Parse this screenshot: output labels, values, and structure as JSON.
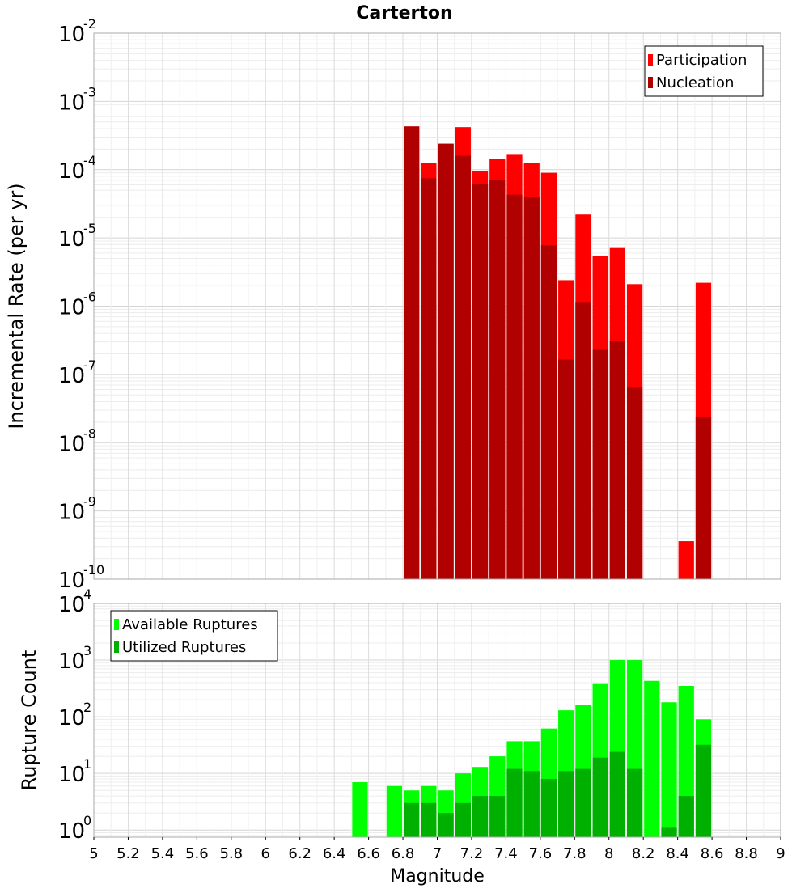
{
  "chart_data": [
    {
      "type": "bar",
      "title": "Carterton",
      "ylabel": "Incremental Rate (per yr)",
      "yscale": "log",
      "ylim": [
        1e-10,
        0.01
      ],
      "xlim": [
        5,
        9
      ],
      "bin_width": 0.1,
      "grid": true,
      "legend_position": "top-right",
      "y_ticks": [
        {
          "base": "10",
          "exp": "-10",
          "value": 1e-10
        },
        {
          "base": "10",
          "exp": "-9",
          "value": 1e-09
        },
        {
          "base": "10",
          "exp": "-8",
          "value": 1e-08
        },
        {
          "base": "10",
          "exp": "-7",
          "value": 1e-07
        },
        {
          "base": "10",
          "exp": "-6",
          "value": 1e-06
        },
        {
          "base": "10",
          "exp": "-5",
          "value": 1e-05
        },
        {
          "base": "10",
          "exp": "-4",
          "value": 0.0001
        },
        {
          "base": "10",
          "exp": "-3",
          "value": 0.001
        },
        {
          "base": "10",
          "exp": "-2",
          "value": 0.01
        }
      ],
      "series": [
        {
          "name": "Participation",
          "color": "#ff0000",
          "x": [
            6.85,
            6.95,
            7.05,
            7.15,
            7.25,
            7.35,
            7.45,
            7.55,
            7.65,
            7.75,
            7.85,
            7.95,
            8.05,
            8.15,
            8.45,
            8.55
          ],
          "values": [
            0.00043,
            0.000125,
            0.00024,
            0.00042,
            9.5e-05,
            0.000145,
            0.000165,
            0.000125,
            9e-05,
            2.4e-06,
            2.2e-05,
            5.5e-06,
            7.3e-06,
            2.1e-06,
            3.6e-10,
            2.2e-06
          ]
        },
        {
          "name": "Nucleation",
          "color": "#b00000",
          "x": [
            6.85,
            6.95,
            7.05,
            7.15,
            7.25,
            7.35,
            7.45,
            7.55,
            7.65,
            7.75,
            7.85,
            7.95,
            8.05,
            8.15,
            8.55
          ],
          "values": [
            0.00043,
            7.5e-05,
            0.00024,
            0.00016,
            6.2e-05,
            7e-05,
            4.3e-05,
            4e-05,
            7.8e-06,
            1.65e-07,
            1.15e-06,
            2.3e-07,
            3.1e-07,
            6.4e-08,
            2.4e-08
          ]
        }
      ]
    },
    {
      "type": "bar",
      "xlabel": "Magnitude",
      "ylabel": "Rupture Count",
      "yscale": "log",
      "ylim": [
        0.75,
        10000
      ],
      "xlim": [
        5,
        9
      ],
      "bin_width": 0.1,
      "grid": true,
      "legend_position": "top-left",
      "x_ticks": [
        "5",
        "5.2",
        "5.4",
        "5.6",
        "5.8",
        "6",
        "6.2",
        "6.4",
        "6.6",
        "6.8",
        "7",
        "7.2",
        "7.4",
        "7.6",
        "7.8",
        "8",
        "8.2",
        "8.4",
        "8.6",
        "8.8",
        "9"
      ],
      "y_ticks": [
        {
          "base": "10",
          "exp": "0",
          "value": 1
        },
        {
          "base": "10",
          "exp": "1",
          "value": 10
        },
        {
          "base": "10",
          "exp": "2",
          "value": 100
        },
        {
          "base": "10",
          "exp": "3",
          "value": 1000
        },
        {
          "base": "10",
          "exp": "4",
          "value": 10000
        }
      ],
      "series": [
        {
          "name": "Available Ruptures",
          "color": "#00ff00",
          "x": [
            6.55,
            6.75,
            6.85,
            6.95,
            7.05,
            7.15,
            7.25,
            7.35,
            7.45,
            7.55,
            7.65,
            7.75,
            7.85,
            7.95,
            8.05,
            8.15,
            8.25,
            8.35,
            8.45,
            8.55
          ],
          "values": [
            7,
            6,
            5,
            6,
            5,
            10,
            13,
            20,
            37,
            37,
            62,
            130,
            160,
            390,
            1000,
            1000,
            430,
            180,
            350,
            90
          ]
        },
        {
          "name": "Utilized Ruptures",
          "color": "#00b000",
          "x": [
            6.85,
            6.95,
            7.05,
            7.15,
            7.25,
            7.35,
            7.45,
            7.55,
            7.65,
            7.75,
            7.85,
            7.95,
            8.05,
            8.15,
            8.35,
            8.45,
            8.55
          ],
          "values": [
            3,
            3,
            2,
            3,
            4,
            4,
            12,
            11,
            8,
            11,
            12,
            19,
            24,
            12,
            1.1,
            4,
            32
          ]
        }
      ]
    }
  ]
}
